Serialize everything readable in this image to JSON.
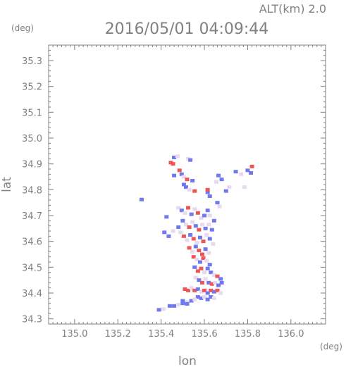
{
  "header": {
    "altitude": "ALT(km) 2.0",
    "timestamp": "2016/05/01 04:09:44"
  },
  "chart_data": {
    "type": "scatter",
    "title": "2016/05/01 04:09:44",
    "subtitle": "ALT(km) 2.0",
    "xlabel": "lon",
    "ylabel": "lat",
    "xunit": "(deg)",
    "yunit": "(deg)",
    "xlim": [
      134.88,
      136.16
    ],
    "ylim": [
      34.28,
      35.36
    ],
    "xticks": [
      135.0,
      135.2,
      135.4,
      135.6,
      135.8,
      136.0
    ],
    "xticklabels": [
      "135.0",
      "135.2",
      "135.4",
      "135.6",
      "135.8",
      "136.0"
    ],
    "yticks": [
      34.3,
      34.4,
      34.5,
      34.6,
      34.7,
      34.8,
      34.9,
      35.0,
      35.1,
      35.2,
      35.3
    ],
    "yticklabels": [
      "34.3",
      "34.4",
      "34.5",
      "34.6",
      "34.7",
      "34.8",
      "34.9",
      "35.0",
      "35.1",
      "35.2",
      "35.3"
    ],
    "grid": false,
    "colors": {
      "positive": "#ee5555",
      "negative": "#6f78ee",
      "neutral": "#e8d8f0",
      "axis": "#808080"
    },
    "series": [
      {
        "values": [
          {
            "x": 135.46,
            "y": 34.925,
            "v": -1
          },
          {
            "x": 135.475,
            "y": 34.93,
            "v": 0
          },
          {
            "x": 135.445,
            "y": 34.905,
            "v": 1
          },
          {
            "x": 135.455,
            "y": 34.9,
            "v": 1
          },
          {
            "x": 135.525,
            "y": 34.92,
            "v": 0
          },
          {
            "x": 135.535,
            "y": 34.915,
            "v": -1
          },
          {
            "x": 135.485,
            "y": 34.875,
            "v": 1
          },
          {
            "x": 135.495,
            "y": 34.86,
            "v": -1
          },
          {
            "x": 135.505,
            "y": 34.85,
            "v": 0
          },
          {
            "x": 135.52,
            "y": 34.84,
            "v": 1
          },
          {
            "x": 135.505,
            "y": 34.82,
            "v": -1
          },
          {
            "x": 135.515,
            "y": 34.81,
            "v": -1
          },
          {
            "x": 135.53,
            "y": 34.8,
            "v": 0
          },
          {
            "x": 135.46,
            "y": 34.855,
            "v": -1
          },
          {
            "x": 135.545,
            "y": 34.835,
            "v": -1
          },
          {
            "x": 135.555,
            "y": 34.795,
            "v": 1
          },
          {
            "x": 135.615,
            "y": 34.79,
            "v": -1
          },
          {
            "x": 135.615,
            "y": 34.8,
            "v": 1
          },
          {
            "x": 135.625,
            "y": 34.775,
            "v": -1
          },
          {
            "x": 135.665,
            "y": 34.855,
            "v": -1
          },
          {
            "x": 135.68,
            "y": 34.84,
            "v": -1
          },
          {
            "x": 135.655,
            "y": 34.83,
            "v": 0
          },
          {
            "x": 135.7,
            "y": 34.795,
            "v": -1
          },
          {
            "x": 135.715,
            "y": 34.81,
            "v": 0
          },
          {
            "x": 135.745,
            "y": 34.87,
            "v": -1
          },
          {
            "x": 135.77,
            "y": 34.86,
            "v": 0
          },
          {
            "x": 135.8,
            "y": 34.875,
            "v": -1
          },
          {
            "x": 135.82,
            "y": 34.89,
            "v": 1
          },
          {
            "x": 135.815,
            "y": 34.865,
            "v": -1
          },
          {
            "x": 135.785,
            "y": 34.81,
            "v": 0
          },
          {
            "x": 135.66,
            "y": 34.75,
            "v": -1
          },
          {
            "x": 135.67,
            "y": 34.735,
            "v": 0
          },
          {
            "x": 135.425,
            "y": 34.695,
            "v": -1
          },
          {
            "x": 135.415,
            "y": 34.635,
            "v": -1
          },
          {
            "x": 135.455,
            "y": 34.64,
            "v": 0
          },
          {
            "x": 135.435,
            "y": 34.62,
            "v": -1
          },
          {
            "x": 135.48,
            "y": 34.73,
            "v": 0
          },
          {
            "x": 135.495,
            "y": 34.72,
            "v": -1
          },
          {
            "x": 135.51,
            "y": 34.71,
            "v": 0
          },
          {
            "x": 135.525,
            "y": 34.73,
            "v": 1
          },
          {
            "x": 135.54,
            "y": 34.705,
            "v": -1
          },
          {
            "x": 135.555,
            "y": 34.725,
            "v": 0
          },
          {
            "x": 135.57,
            "y": 34.71,
            "v": 1
          },
          {
            "x": 135.585,
            "y": 34.69,
            "v": 0
          },
          {
            "x": 135.6,
            "y": 34.7,
            "v": -1
          },
          {
            "x": 135.615,
            "y": 34.72,
            "v": -1
          },
          {
            "x": 135.625,
            "y": 34.7,
            "v": 0
          },
          {
            "x": 135.645,
            "y": 34.68,
            "v": -1
          },
          {
            "x": 135.5,
            "y": 34.68,
            "v": -1
          },
          {
            "x": 135.515,
            "y": 34.665,
            "v": 0
          },
          {
            "x": 135.53,
            "y": 34.655,
            "v": 1
          },
          {
            "x": 135.545,
            "y": 34.675,
            "v": 0
          },
          {
            "x": 135.56,
            "y": 34.66,
            "v": -1
          },
          {
            "x": 135.575,
            "y": 34.645,
            "v": 1
          },
          {
            "x": 135.59,
            "y": 34.665,
            "v": 0
          },
          {
            "x": 135.605,
            "y": 34.65,
            "v": -1
          },
          {
            "x": 135.62,
            "y": 34.665,
            "v": 0
          },
          {
            "x": 135.635,
            "y": 34.645,
            "v": -1
          },
          {
            "x": 135.48,
            "y": 34.655,
            "v": -1
          },
          {
            "x": 135.49,
            "y": 34.635,
            "v": 0
          },
          {
            "x": 135.505,
            "y": 34.62,
            "v": 1
          },
          {
            "x": 135.52,
            "y": 34.605,
            "v": 0
          },
          {
            "x": 135.535,
            "y": 34.625,
            "v": -1
          },
          {
            "x": 135.55,
            "y": 34.61,
            "v": 1
          },
          {
            "x": 135.565,
            "y": 34.595,
            "v": 0
          },
          {
            "x": 135.58,
            "y": 34.615,
            "v": -1
          },
          {
            "x": 135.595,
            "y": 34.6,
            "v": 1
          },
          {
            "x": 135.61,
            "y": 34.625,
            "v": 0
          },
          {
            "x": 135.625,
            "y": 34.61,
            "v": -1
          },
          {
            "x": 135.64,
            "y": 34.59,
            "v": 0
          },
          {
            "x": 135.53,
            "y": 34.575,
            "v": 1
          },
          {
            "x": 135.545,
            "y": 34.56,
            "v": 0
          },
          {
            "x": 135.56,
            "y": 34.58,
            "v": -1
          },
          {
            "x": 135.575,
            "y": 34.565,
            "v": 1
          },
          {
            "x": 135.59,
            "y": 34.55,
            "v": 1
          },
          {
            "x": 135.605,
            "y": 34.57,
            "v": -1
          },
          {
            "x": 135.62,
            "y": 34.555,
            "v": 0
          },
          {
            "x": 135.55,
            "y": 34.54,
            "v": 1
          },
          {
            "x": 135.565,
            "y": 34.53,
            "v": 0
          },
          {
            "x": 135.58,
            "y": 34.52,
            "v": -1
          },
          {
            "x": 135.595,
            "y": 34.535,
            "v": 1
          },
          {
            "x": 135.61,
            "y": 34.525,
            "v": 0
          },
          {
            "x": 135.625,
            "y": 34.51,
            "v": -1
          },
          {
            "x": 135.555,
            "y": 34.5,
            "v": -1
          },
          {
            "x": 135.57,
            "y": 34.485,
            "v": 1
          },
          {
            "x": 135.585,
            "y": 34.495,
            "v": 1
          },
          {
            "x": 135.6,
            "y": 34.48,
            "v": 0
          },
          {
            "x": 135.615,
            "y": 34.495,
            "v": -1
          },
          {
            "x": 135.63,
            "y": 34.48,
            "v": -1
          },
          {
            "x": 135.645,
            "y": 34.47,
            "v": 0
          },
          {
            "x": 135.66,
            "y": 34.465,
            "v": 1
          },
          {
            "x": 135.675,
            "y": 34.455,
            "v": -1
          },
          {
            "x": 135.56,
            "y": 34.46,
            "v": 0
          },
          {
            "x": 135.575,
            "y": 34.45,
            "v": -1
          },
          {
            "x": 135.59,
            "y": 34.44,
            "v": 1
          },
          {
            "x": 135.605,
            "y": 34.455,
            "v": 0
          },
          {
            "x": 135.62,
            "y": 34.44,
            "v": -1
          },
          {
            "x": 135.635,
            "y": 34.435,
            "v": 1
          },
          {
            "x": 135.65,
            "y": 34.44,
            "v": 0
          },
          {
            "x": 135.665,
            "y": 34.43,
            "v": -1
          },
          {
            "x": 135.68,
            "y": 34.44,
            "v": -1
          },
          {
            "x": 135.51,
            "y": 34.415,
            "v": 1
          },
          {
            "x": 135.525,
            "y": 34.41,
            "v": 1
          },
          {
            "x": 135.54,
            "y": 34.42,
            "v": 0
          },
          {
            "x": 135.555,
            "y": 34.41,
            "v": 1
          },
          {
            "x": 135.57,
            "y": 34.415,
            "v": -1
          },
          {
            "x": 135.585,
            "y": 34.405,
            "v": 0
          },
          {
            "x": 135.6,
            "y": 34.41,
            "v": 1
          },
          {
            "x": 135.615,
            "y": 34.4,
            "v": -1
          },
          {
            "x": 135.63,
            "y": 34.41,
            "v": 1
          },
          {
            "x": 135.645,
            "y": 34.405,
            "v": -1
          },
          {
            "x": 135.66,
            "y": 34.41,
            "v": 1
          },
          {
            "x": 135.675,
            "y": 34.4,
            "v": 0
          },
          {
            "x": 135.57,
            "y": 34.385,
            "v": -1
          },
          {
            "x": 135.585,
            "y": 34.38,
            "v": -1
          },
          {
            "x": 135.6,
            "y": 34.385,
            "v": 0
          },
          {
            "x": 135.615,
            "y": 34.375,
            "v": -1
          },
          {
            "x": 135.63,
            "y": 34.385,
            "v": -1
          },
          {
            "x": 135.645,
            "y": 34.38,
            "v": 0
          },
          {
            "x": 135.5,
            "y": 34.37,
            "v": -1
          },
          {
            "x": 135.52,
            "y": 34.365,
            "v": 0
          },
          {
            "x": 135.54,
            "y": 34.37,
            "v": -1
          },
          {
            "x": 135.555,
            "y": 34.375,
            "v": 0
          },
          {
            "x": 135.44,
            "y": 34.35,
            "v": -1
          },
          {
            "x": 135.46,
            "y": 34.35,
            "v": -1
          },
          {
            "x": 135.48,
            "y": 34.355,
            "v": 0
          },
          {
            "x": 135.5,
            "y": 34.36,
            "v": -1
          },
          {
            "x": 135.52,
            "y": 34.358,
            "v": -1
          },
          {
            "x": 135.39,
            "y": 34.335,
            "v": -1
          },
          {
            "x": 135.41,
            "y": 34.338,
            "v": 0
          },
          {
            "x": 135.31,
            "y": 34.762,
            "v": -1
          }
        ]
      }
    ]
  }
}
